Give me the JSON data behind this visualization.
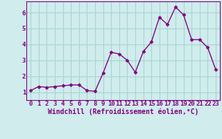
{
  "x": [
    0,
    1,
    2,
    3,
    4,
    5,
    6,
    7,
    8,
    9,
    10,
    11,
    12,
    13,
    14,
    15,
    16,
    17,
    18,
    19,
    20,
    21,
    22,
    23
  ],
  "y": [
    1.1,
    1.35,
    1.3,
    1.35,
    1.4,
    1.45,
    1.45,
    1.1,
    1.05,
    2.2,
    3.5,
    3.4,
    3.0,
    2.25,
    3.55,
    4.15,
    5.7,
    5.25,
    6.35,
    5.85,
    4.3,
    4.3,
    3.8,
    2.4
  ],
  "line_color": "#800080",
  "marker": "D",
  "marker_size": 2.5,
  "bg_color": "#d0ecec",
  "grid_color": "#a8d4d4",
  "xlabel": "Windchill (Refroidissement éolien,°C)",
  "xlim": [
    -0.5,
    23.5
  ],
  "ylim": [
    0.5,
    6.7
  ],
  "yticks": [
    1,
    2,
    3,
    4,
    5,
    6
  ],
  "xticks": [
    0,
    1,
    2,
    3,
    4,
    5,
    6,
    7,
    8,
    9,
    10,
    11,
    12,
    13,
    14,
    15,
    16,
    17,
    18,
    19,
    20,
    21,
    22,
    23
  ],
  "xlabel_fontsize": 7,
  "tick_fontsize": 6.5,
  "axis_color": "#800080",
  "spine_color": "#800080",
  "linewidth": 1.0
}
